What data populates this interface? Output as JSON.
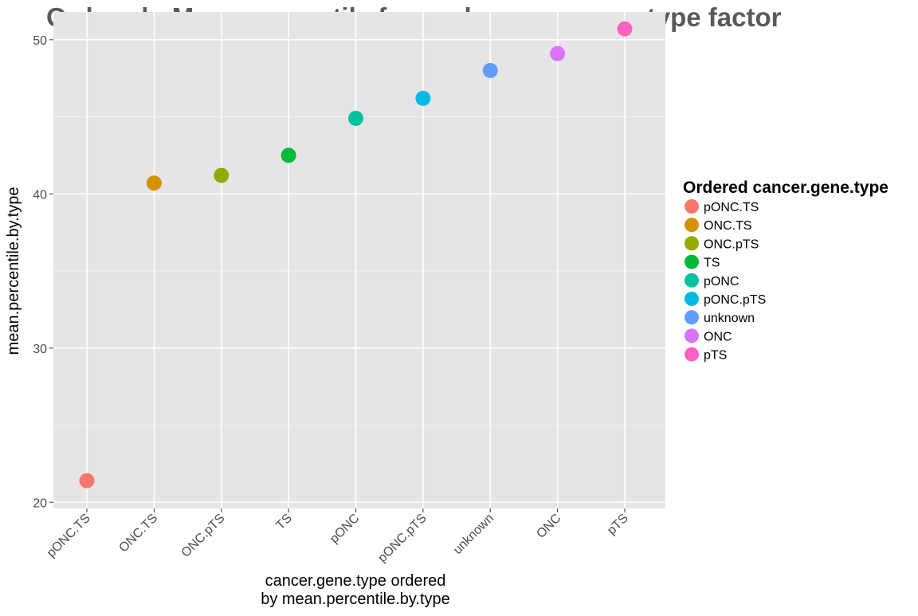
{
  "chart_data": {
    "type": "scatter",
    "title": "Ordered - Mean percentile for each cancer.gene.type factor",
    "xlabel": [
      "cancer.gene.type ordered",
      "by mean.percentile.by.type"
    ],
    "ylabel": "mean.percentile.by.type",
    "categories": [
      "pONC.TS",
      "ONC.TS",
      "ONC.pTS",
      "TS",
      "pONC",
      "pONC.pTS",
      "unknown",
      "ONC",
      "pTS"
    ],
    "values": [
      21.4,
      40.7,
      41.2,
      42.5,
      44.9,
      46.2,
      48.0,
      49.1,
      50.7
    ],
    "colors": [
      "#F8766D",
      "#D39200",
      "#93AA00",
      "#00BA38",
      "#00C19F",
      "#00B9E3",
      "#619CFF",
      "#DB72FB",
      "#FF61C3"
    ],
    "ylim": [
      19.6,
      51.8
    ],
    "yticks": [
      20,
      30,
      40,
      50
    ],
    "grid": true,
    "legend": {
      "title": "Ordered cancer.gene.type",
      "position": "right"
    },
    "panel_background": "#E5E5E5",
    "grid_color": "#FFFFFF"
  }
}
